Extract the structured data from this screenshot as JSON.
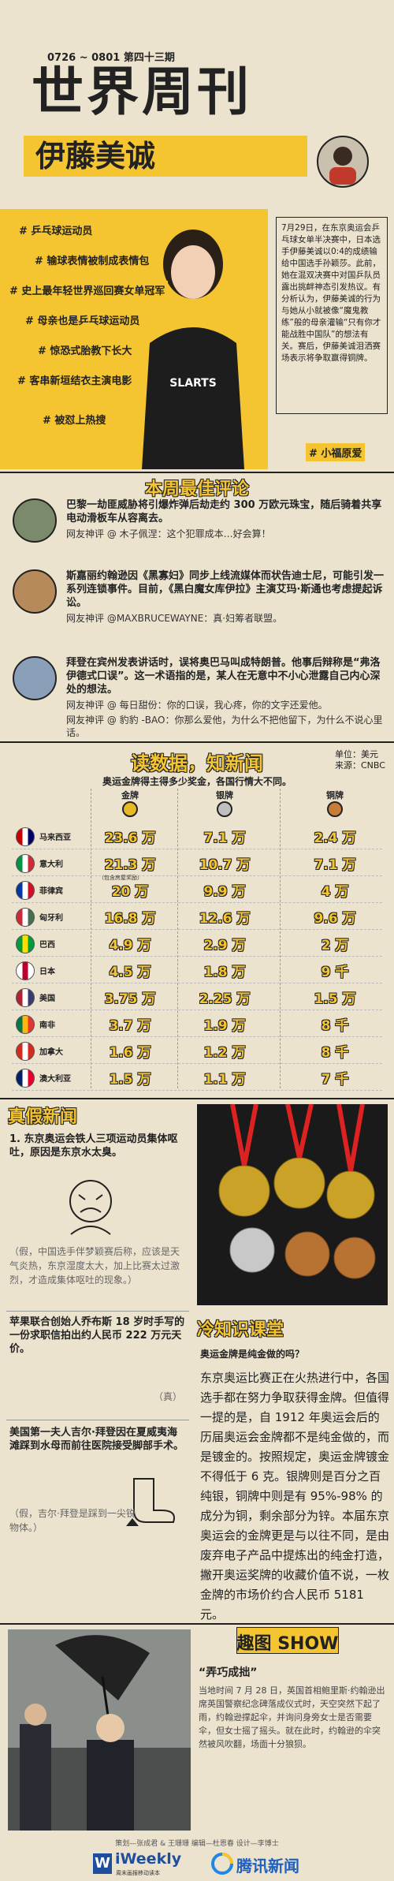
{
  "header": {
    "issue": "0726 ~ 0801 第四十三期",
    "title": "世界周刊",
    "subtitle": "伊藤美诚"
  },
  "profile": {
    "tags": [
      "# 乒乓球运动员",
      "# 输球表情被制成表情包",
      "# 史上最年轻世界巡回赛女单冠军",
      "# 母亲也是乒乓球运动员",
      "# 惊恐式胎教下长大",
      "# 客串新垣结衣主演电影",
      "# 被怼上热搜",
      "# 小福原爱"
    ],
    "intro": "7月29日，在东京奥运会乒乓球女单半决赛中，日本选手伊藤美诚以0:4的成绩输给中国选手孙颖莎。此前，她在混双决赛中对国乒队员露出挑衅神态引发热议。有分析认为，伊藤美诚的行为与她从小就被像“魔鬼教练”般的母亲灌输“只有你才能战胜中国队”的想法有关。赛后，伊藤美诚泪洒赛场表示将争取赢得铜牌。"
  },
  "comments": {
    "title": "本周最佳评论",
    "items": [
      {
        "news": "巴黎一劫匪威胁将引爆炸弹后劫走约 300 万欧元珠宝，随后骑着共享电动滑板车从容离去。",
        "replies": [
          "网友神评 @ 木子佩涅：这个犯罪成本…好会算！"
        ]
      },
      {
        "news": "斯嘉丽约翰逊因《黑寡妇》同步上线流媒体而状告迪士尼，可能引发一系列连锁事件。目前，《黑白魔女库伊拉》主演艾玛·斯通也考虑提起诉讼。",
        "replies": [
          "网友神评 @MAXBRUCEWAYNE：真·妇筹者联盟。"
        ]
      },
      {
        "news": "拜登在宾州发表讲话时，误将奥巴马叫成特朗普。他事后辩称是“弗洛伊德式口误”。这一术语指的是，某人在无意中不小心泄露自己内心深处的想法。",
        "replies": [
          "网友神评 @ 每日甜份：你的口误，我心疼，你的文字还爱他。",
          "网友神评 @ 豹豹 -BAO：你那么爱他，为什么不把他留下，为什么不说心里话。"
        ]
      }
    ]
  },
  "data_news": {
    "title": "读数据，知新闻",
    "unit": "单位：美元",
    "source": "来源：CNBC",
    "subtitle": "奥运金牌得主得多少奖金，各国行情大不同。",
    "columns": [
      "金牌",
      "银牌",
      "铜牌"
    ],
    "note": "（包含房屋奖励）",
    "rows": [
      {
        "country": "马来西亚",
        "values": [
          "23.6 万",
          "7.1 万",
          "2.4 万"
        ]
      },
      {
        "country": "意大利",
        "values": [
          "21.3 万",
          "10.7 万",
          "7.1 万"
        ]
      },
      {
        "country": "菲律宾",
        "values": [
          "20 万",
          "9.9 万",
          "4 万"
        ]
      },
      {
        "country": "匈牙利",
        "values": [
          "16.8 万",
          "12.6 万",
          "9.6 万"
        ]
      },
      {
        "country": "巴西",
        "values": [
          "4.9 万",
          "2.9 万",
          "2 万"
        ]
      },
      {
        "country": "日本",
        "values": [
          "4.5 万",
          "1.8 万",
          "9 千"
        ]
      },
      {
        "country": "美国",
        "values": [
          "3.75 万",
          "2.25 万",
          "1.5 万"
        ]
      },
      {
        "country": "南非",
        "values": [
          "3.7 万",
          "1.9 万",
          "8 千"
        ]
      },
      {
        "country": "加拿大",
        "values": [
          "1.6 万",
          "1.2 万",
          "8 千"
        ]
      },
      {
        "country": "澳大利亚",
        "values": [
          "1.5 万",
          "1.1 万",
          "7 千"
        ]
      }
    ]
  },
  "fact_check": {
    "title": "真假新闻",
    "items": [
      {
        "claim": "1. 东京奥运会铁人三项运动员集体呕吐，原因是东京水太臭。",
        "verdict": "（假，中国选手伴梦颖赛后称，应该是天气炎热，东京湿度太大，加上比赛太过激烈，才造成集体呕吐的现象。）"
      },
      {
        "claim": "苹果联合创始人乔布斯 18 岁时手写的一份求职信拍出约人民币 222 万元天价。",
        "verdict": "（真）"
      },
      {
        "claim": "美国第一夫人吉尔·拜登因在夏威夷海滩踩到水母而前往医院接受脚部手术。",
        "verdict": "（假，吉尔·拜登是踩到一尖锐物体。）"
      }
    ]
  },
  "trivia": {
    "title": "冷知识课堂",
    "question": "奥运金牌是纯金做的吗？",
    "body": "东京奥运比赛正在火热进行中，各国选手都在努力争取获得金牌。但值得一提的是，自 1912 年奥运会后的历届奥运会金牌都不是纯金做的，而是镀金的。按照规定，奥运金牌镀金不得低于 6 克。银牌则是百分之百纯银，铜牌中则是有 95%-98% 的成分为铜，剩余部分为锌。本届东京奥运会的金牌更是与以往不同，是由废弃电子产品中提炼出的纯金打造，撇开奥运奖牌的收藏价值不说，一枚金牌的市场价约合人民币 5181 元。"
  },
  "fun_pic": {
    "title": "趣图 SHOW",
    "caption": "“弄巧成拙”",
    "body": "当地时间 7 月 28 日，英国首相鲍里斯·约翰逊出席英国警察纪念碑落成仪式时，天空突然下起了雨，约翰逊撑起伞，并询问身旁女士是否需要伞，但女士摇了摇头。就在此时，约翰逊的伞突然被风吹翻，场面十分狼狈。"
  },
  "footer": {
    "credits": "策划—张成君 & 王珊珊  编辑—杜恩春  设计—李博士",
    "brand1": "iWeekly",
    "brand1_sub": "周末画报移动读本",
    "brand2": "腾讯新闻"
  }
}
